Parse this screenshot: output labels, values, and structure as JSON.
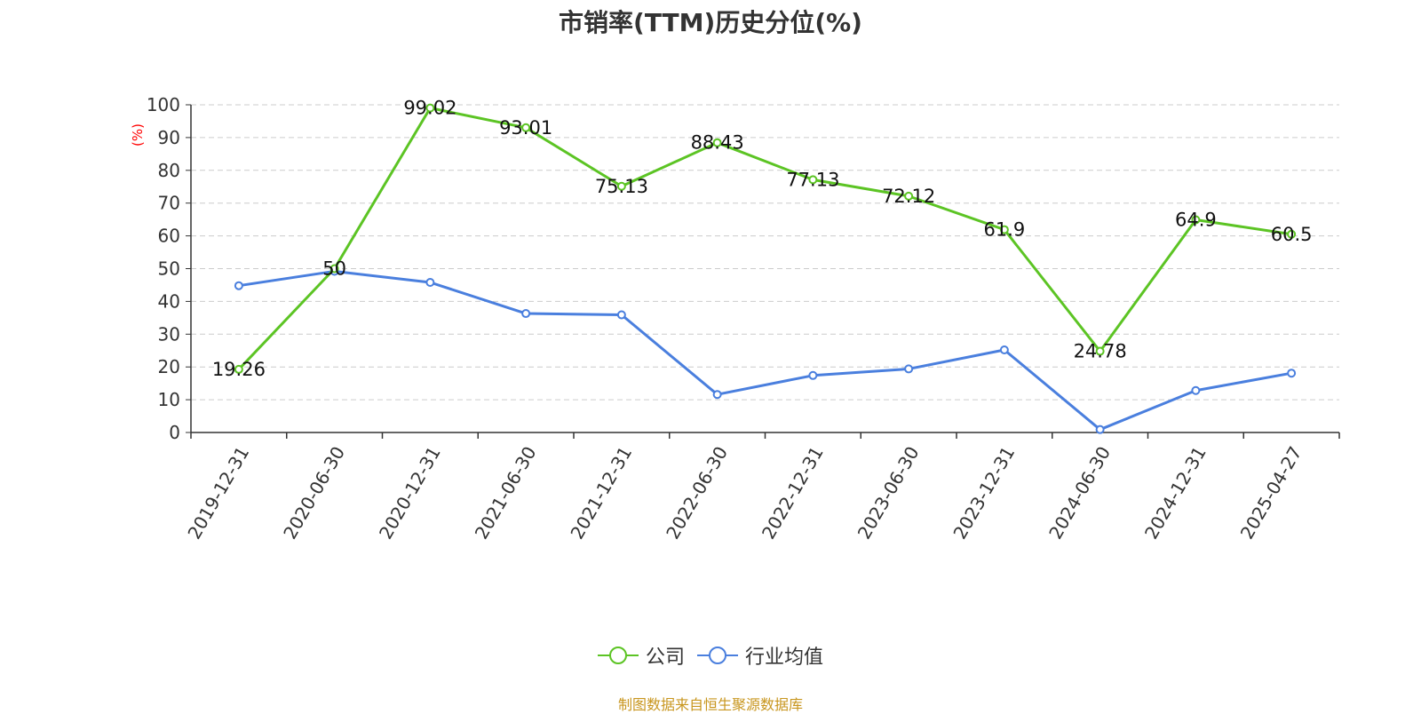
{
  "chart_data": {
    "type": "line",
    "title": "市销率(TTM)历史分位(%)",
    "ylabel": "(%)",
    "xlabel": "",
    "ylim": [
      0,
      100
    ],
    "yticks": [
      0,
      10,
      20,
      30,
      40,
      50,
      60,
      70,
      80,
      90,
      100
    ],
    "categories": [
      "2019-12-31",
      "2020-06-30",
      "2020-12-31",
      "2021-06-30",
      "2021-12-31",
      "2022-06-30",
      "2022-12-31",
      "2023-06-30",
      "2023-12-31",
      "2024-06-30",
      "2024-12-31",
      "2025-04-27"
    ],
    "grid": "horizontal dashed",
    "legend_position": "bottom",
    "series": [
      {
        "name": "公司",
        "color": "#5cc424",
        "values": [
          19.26,
          50,
          99.02,
          93.01,
          75.13,
          88.43,
          77.13,
          72.12,
          61.9,
          24.78,
          64.9,
          60.5
        ],
        "labels": [
          "19.26",
          "50",
          "99.02",
          "93.01",
          "75.13",
          "88.43",
          "77.13",
          "72.12",
          "61.9",
          "24.78",
          "64.9",
          "60.5"
        ]
      },
      {
        "name": "行业均值",
        "color": "#4a7fde",
        "values": [
          44.8,
          49.2,
          45.8,
          36.3,
          35.9,
          11.6,
          17.4,
          19.4,
          25.2,
          0.9,
          12.8,
          18.1
        ]
      }
    ]
  },
  "source_text": "制图数据来自恒生聚源数据库",
  "colors": {
    "axis": "#333333",
    "grid": "#cccccc",
    "ylabel": "#ff0000",
    "source": "#c8961e"
  }
}
